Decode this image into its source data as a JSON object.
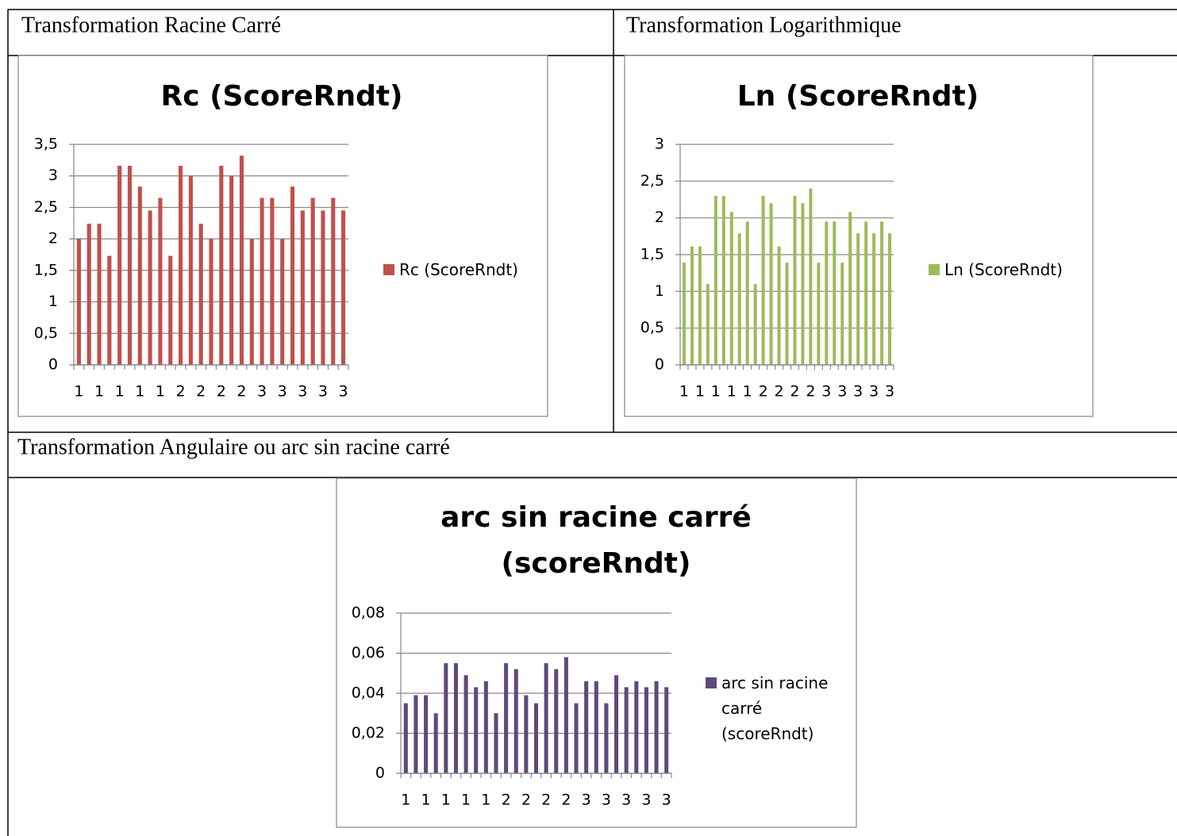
{
  "table": {
    "cells": [
      "Transformation Racine Carré",
      "Transformation Logarithmique",
      "Transformation Angulaire ou arc sin racine carré"
    ]
  },
  "chart_data": [
    {
      "type": "bar",
      "title": "Rc (ScoreRndt)",
      "categories": [
        "1",
        null,
        "1",
        null,
        "1",
        null,
        "1",
        null,
        "1",
        null,
        "2",
        null,
        "2",
        null,
        "2",
        null,
        "2",
        null,
        "3",
        null,
        "3",
        null,
        "3",
        null,
        "3",
        null,
        "3"
      ],
      "series": [
        {
          "name": "Rc (ScoreRndt)",
          "color": "#c0504d",
          "values": [
            2,
            2.24,
            2.24,
            1.73,
            3.16,
            3.16,
            2.83,
            2.45,
            2.65,
            1.73,
            3.16,
            3,
            2.24,
            2,
            3.16,
            3,
            3.32,
            2,
            2.65,
            2.65,
            2,
            2.83,
            2.45,
            2.65,
            2.45,
            2.65,
            2.45
          ]
        }
      ],
      "ylim": [
        0,
        3.5
      ],
      "yticks": [
        0,
        {
          "value": 0.5,
          "label": "0,5"
        },
        1,
        {
          "value": 1.5,
          "label": "1,5"
        },
        2,
        {
          "value": 2.5,
          "label": "2,5"
        },
        3,
        {
          "value": 3.5,
          "label": "3,5"
        }
      ],
      "grid": true,
      "legend": "right"
    },
    {
      "type": "bar",
      "title": "Ln (ScoreRndt)",
      "categories": [
        "1",
        null,
        "1",
        null,
        "1",
        null,
        "1",
        null,
        "1",
        null,
        "2",
        null,
        "2",
        null,
        "2",
        null,
        "2",
        null,
        "3",
        null,
        "3",
        null,
        "3",
        null,
        "3",
        null,
        "3"
      ],
      "series": [
        {
          "name": "Ln (ScoreRndt)",
          "color": "#9bbb59",
          "values": [
            1.39,
            1.61,
            1.61,
            1.1,
            2.3,
            2.3,
            2.08,
            1.79,
            1.95,
            1.1,
            2.3,
            2.2,
            1.61,
            1.39,
            2.3,
            2.2,
            2.4,
            1.39,
            1.95,
            1.95,
            1.39,
            2.08,
            1.79,
            1.95,
            1.79,
            1.95,
            1.79
          ]
        }
      ],
      "ylim": [
        0,
        3
      ],
      "yticks": [
        0,
        {
          "value": 0.5,
          "label": "0,5"
        },
        1,
        {
          "value": 1.5,
          "label": "1,5"
        },
        2,
        {
          "value": 2.5,
          "label": "2,5"
        },
        3
      ],
      "grid": true,
      "legend": "right"
    },
    {
      "type": "bar",
      "title": "arc sin racine carré (scoreRndt)",
      "categories": [
        "1",
        null,
        "1",
        null,
        "1",
        null,
        "1",
        null,
        "1",
        null,
        "2",
        null,
        "2",
        null,
        "2",
        null,
        "2",
        null,
        "3",
        null,
        "3",
        null,
        "3",
        null,
        "3",
        null,
        "3"
      ],
      "series": [
        {
          "name": "arc sin racine carré (scoreRndt)",
          "color": "#5f497a",
          "values": [
            0.035,
            0.039,
            0.039,
            0.03,
            0.055,
            0.055,
            0.049,
            0.043,
            0.046,
            0.03,
            0.055,
            0.052,
            0.039,
            0.035,
            0.055,
            0.052,
            0.058,
            0.035,
            0.046,
            0.046,
            0.035,
            0.049,
            0.043,
            0.046,
            0.043,
            0.046,
            0.043
          ]
        }
      ],
      "ylim": [
        0,
        0.08
      ],
      "yticks": [
        0,
        {
          "value": 0.02,
          "label": "0,02"
        },
        {
          "value": 0.04,
          "label": "0,04"
        },
        {
          "value": 0.06,
          "label": "0,06"
        },
        {
          "value": 0.08,
          "label": "0,08"
        }
      ],
      "grid": true,
      "legend": "right"
    }
  ]
}
